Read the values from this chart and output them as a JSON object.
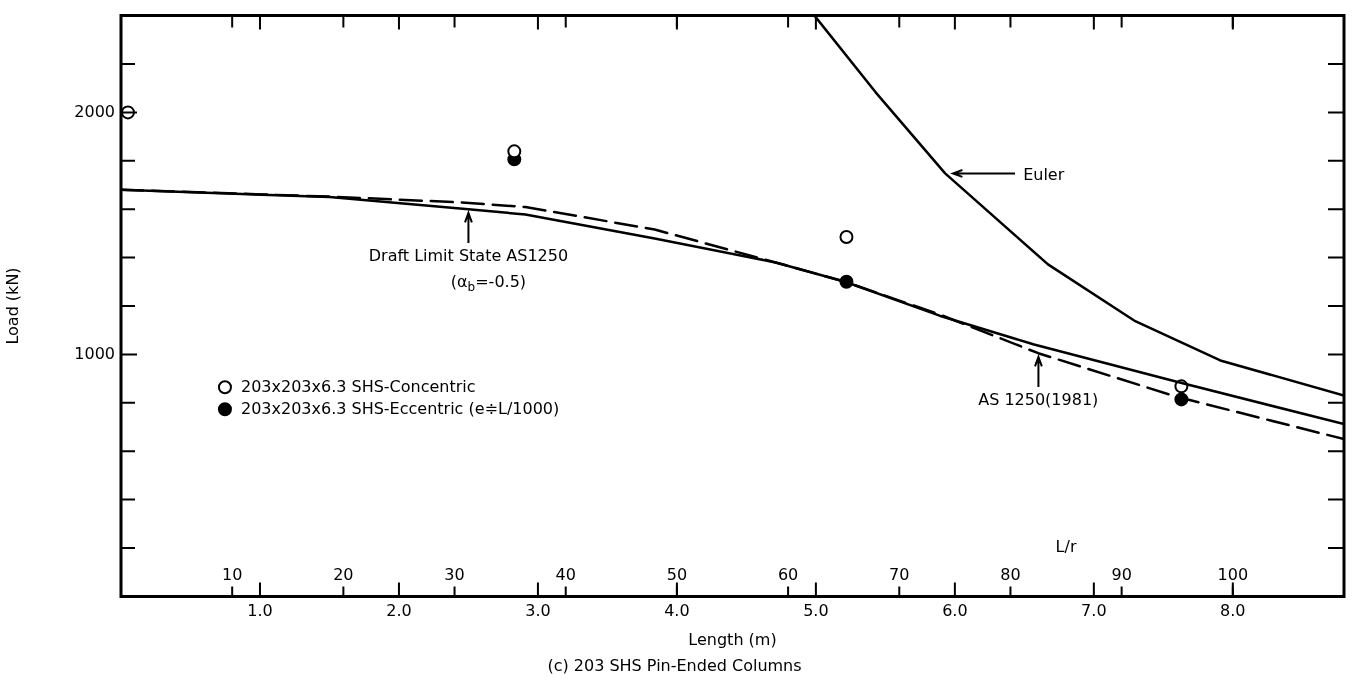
{
  "chart_data": {
    "type": "line",
    "title": "(c) 203 SHS Pin-Ended Columns",
    "xlabel": "Length (m)",
    "ylabel": "Load (kN)",
    "x2label": "L/r",
    "xlim": [
      0,
      8.8
    ],
    "xticks": [
      {
        "value": 1,
        "label": "1.0"
      },
      {
        "value": 2,
        "label": "2.0"
      },
      {
        "value": 3,
        "label": "3.0"
      },
      {
        "value": 4,
        "label": "4.0"
      },
      {
        "value": 5,
        "label": "5.0"
      },
      {
        "value": 6,
        "label": "6.0"
      },
      {
        "value": 7,
        "label": "7.0"
      },
      {
        "value": 8,
        "label": "8.0"
      }
    ],
    "x2lim": [
      0,
      110
    ],
    "x2ticks": [
      10,
      20,
      30,
      40,
      50,
      60,
      70,
      80,
      90,
      100
    ],
    "ylim": [
      0,
      2400
    ],
    "yticks": [
      {
        "value": 200,
        "label": null
      },
      {
        "value": 400,
        "label": null
      },
      {
        "value": 600,
        "label": null
      },
      {
        "value": 800,
        "label": null
      },
      1000,
      {
        "value": 1200,
        "label": null
      },
      {
        "value": 1400,
        "label": null
      },
      {
        "value": 1600,
        "label": null
      },
      {
        "value": 1800,
        "label": null
      },
      2000,
      {
        "value": 2200,
        "label": null
      }
    ],
    "grid": false,
    "legend": "left",
    "annotations": [
      "(α$_{b}$=-0.5)"
    ],
    "series": [
      {
        "name": "Euler",
        "color": "#000000",
        "line_style": "solid",
        "marker": "none",
        "x": [
          4.99,
          5.43,
          5.93,
          6.67,
          7.29,
          7.91,
          8.8
        ],
        "values": [
          2400,
          2083,
          1748,
          1372,
          1140,
          975,
          830
        ]
      },
      {
        "name": "Draft Limit State AS1250",
        "color": "#000000",
        "line_style": "solid",
        "marker": "none",
        "x": [
          0,
          1.5,
          2.5,
          2.91,
          3.84,
          4.71,
          5.21,
          5.89,
          6.57,
          7.59,
          8.8
        ],
        "values": [
          1680,
          1650,
          1600,
          1578,
          1479,
          1380,
          1300,
          1160,
          1041,
          888,
          712
        ]
      },
      {
        "name": "AS 1250(1981)",
        "color": "#000000",
        "line_style": "dashed",
        "marker": "none",
        "x": [
          0,
          1.5,
          2.44,
          2.91,
          3.84,
          4.71,
          5.21,
          5.89,
          6.6,
          7.59,
          8.8
        ],
        "values": [
          1680,
          1652,
          1628,
          1609,
          1516,
          1380,
          1300,
          1165,
          1005,
          826,
          650
        ]
      },
      {
        "name": "203x203x6.3 SHS-Concentric",
        "type": "scatter",
        "color": "#ffffff",
        "marker": "circle",
        "x": [
          0.05,
          2.83,
          5.22,
          7.63
        ],
        "values": [
          2000,
          1839,
          1485,
          868
        ]
      },
      {
        "name": "203x203x6.3 SHS-Eccentric (e≑L/1000)",
        "type": "scatter",
        "color": "#000000",
        "marker": "circle",
        "x": [
          2.83,
          5.22,
          7.63
        ],
        "values": [
          1806,
          1300,
          814
        ]
      }
    ]
  }
}
